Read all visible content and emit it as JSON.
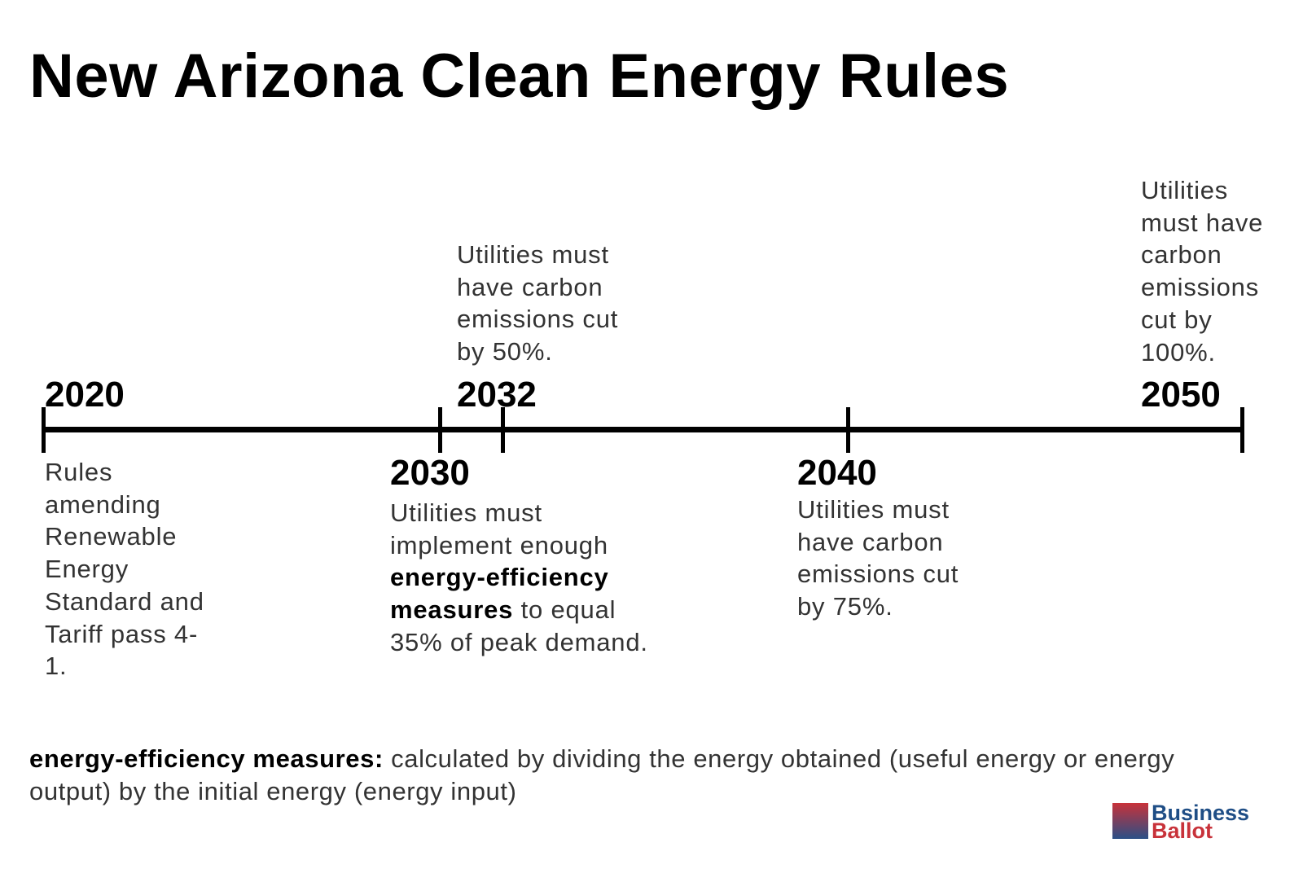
{
  "title": "New Arizona Clean Energy Rules",
  "timeline": [
    {
      "year": "2020",
      "text": "Rules amending Renewable Energy Standard and Tariff pass 4-1."
    },
    {
      "year": "2030",
      "text_pre": "Utilities must implement enough",
      "text_bold": "energy-efficiency measures",
      "text_post": "to equal 35% of peak demand."
    },
    {
      "year": "2032",
      "text": "Utilities must have carbon emissions cut by 50%."
    },
    {
      "year": "2040",
      "text": "Utilities must have carbon emissions cut by 75%."
    },
    {
      "year": "2050",
      "text": "Utilities must have carbon emissions cut by 100%."
    }
  ],
  "footnote": {
    "term": "energy-efficiency measures:",
    "definition": "calculated by dividing the energy obtained (useful energy or energy output) by the initial energy (energy input)"
  },
  "logo": {
    "line1": "Business",
    "line2": "Ballot",
    "colors": {
      "red": "#c8323a",
      "blue": "#1f4e86"
    }
  }
}
